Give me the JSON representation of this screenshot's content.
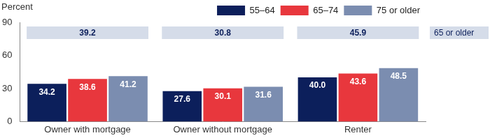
{
  "chart_data": {
    "type": "bar",
    "ylabel": "Percent",
    "categories": [
      "Owner with mortgage",
      "Owner without mortgage",
      "Renter"
    ],
    "series": [
      {
        "name": "55–64",
        "color": "#0c1f5b",
        "values": [
          34.2,
          27.6,
          40.0
        ],
        "value_labels": [
          "34.2",
          "27.6",
          "40.0"
        ]
      },
      {
        "name": "65–74",
        "color": "#e8373d",
        "values": [
          38.6,
          30.1,
          43.6
        ],
        "value_labels": [
          "38.6",
          "30.1",
          "43.6"
        ]
      },
      {
        "name": "75 or older",
        "color": "#7b8db0",
        "values": [
          41.2,
          31.6,
          48.5
        ],
        "value_labels": [
          "41.2",
          "31.6",
          "48.5"
        ]
      }
    ],
    "group_totals": {
      "name": "65 or older",
      "values": [
        39.2,
        30.8,
        45.9
      ]
    },
    "ylim": [
      0,
      90
    ],
    "yticks": [
      0,
      30,
      60,
      90
    ],
    "grid": false,
    "legend": "top right",
    "data_labels": true
  }
}
